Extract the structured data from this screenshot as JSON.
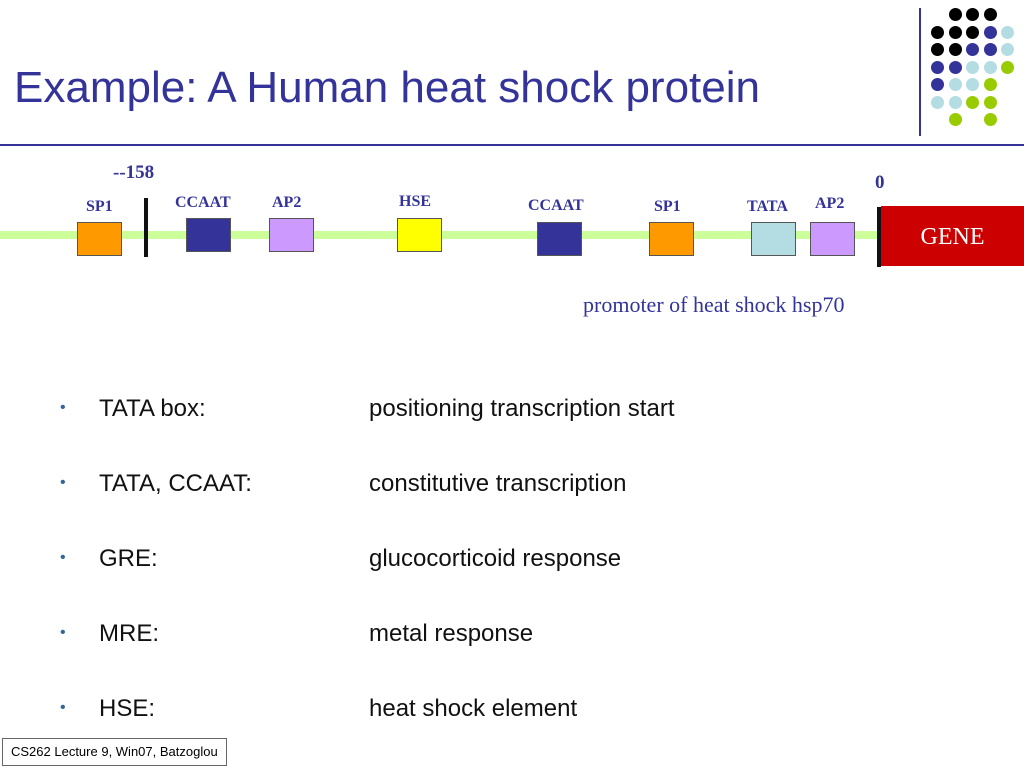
{
  "slide": {
    "title": "Example: A Human heat shock protein",
    "footer": "CS262 Lecture 9, Win07, Batzoglou"
  },
  "decoration": {
    "dot_colors": {
      "black": "#000000",
      "purple": "#333399",
      "light_blue": "#b3dde3",
      "green": "#99cc00"
    }
  },
  "diagram": {
    "marker_label": "--158",
    "zero_label": "0",
    "gene_label": "GENE",
    "caption": "promoter of heat shock hsp70",
    "sites": [
      {
        "label": "SP1",
        "color": "#ff9900"
      },
      {
        "label": "CCAAT",
        "color": "#333399"
      },
      {
        "label": "AP2",
        "color": "#cc99ff"
      },
      {
        "label": "HSE",
        "color": "#ffff00"
      },
      {
        "label": "CCAAT",
        "color": "#333399"
      },
      {
        "label": "SP1",
        "color": "#ff9900"
      },
      {
        "label": "TATA",
        "color": "#b3dde3"
      },
      {
        "label": "AP2",
        "color": "#cc99ff"
      }
    ]
  },
  "bullets": [
    {
      "term": "TATA box:",
      "desc": "positioning transcription start"
    },
    {
      "term": "TATA, CCAAT:",
      "desc": "constitutive transcription"
    },
    {
      "term": "GRE:",
      "desc": "glucocorticoid response"
    },
    {
      "term": "MRE:",
      "desc": "metal response"
    },
    {
      "term": "HSE:",
      "desc": "heat shock element"
    }
  ]
}
